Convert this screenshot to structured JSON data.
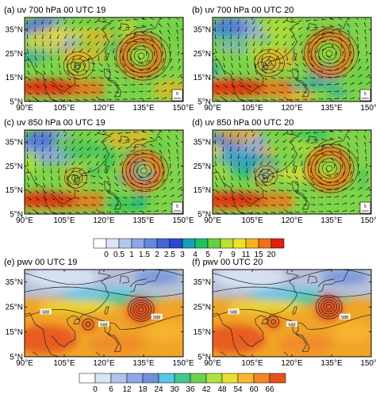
{
  "panels": [
    {
      "id": "a",
      "title": "(a) uv 700 hPa 00 UTC 19",
      "field": "wind"
    },
    {
      "id": "b",
      "title": "(b) uv 700 hPa 00 UTC 20",
      "field": "wind"
    },
    {
      "id": "c",
      "title": "(c) uv 850 hPa 00 UTC 19",
      "field": "wind"
    },
    {
      "id": "d",
      "title": "(d) uv 850 hPa 00 UTC 20",
      "field": "wind"
    },
    {
      "id": "e",
      "title": "(e) pwv  00 UTC 19",
      "field": "pwv"
    },
    {
      "id": "f",
      "title": "(f) pwv  00 UTC 20",
      "field": "pwv"
    }
  ],
  "axes": {
    "lon_ticks": [
      "90°E",
      "105°E",
      "120°E",
      "135°E",
      "150°E"
    ],
    "lat_ticks": [
      "5°N",
      "15°N",
      "25°N",
      "35°N"
    ],
    "lon_range": [
      90,
      150
    ],
    "lat_range": [
      5,
      40
    ]
  },
  "ref_vector_label": "5",
  "contour_label": "588",
  "wind_colorbar": {
    "labels": [
      "0",
      "0.5",
      "1",
      "1.5",
      "2",
      "2.5",
      "3",
      "4",
      "5",
      "7",
      "9",
      "11",
      "15",
      "20"
    ],
    "colors": [
      "#ffffff",
      "#dce6f5",
      "#b4c8ee",
      "#8ca6e8",
      "#6688e0",
      "#4466d8",
      "#2a48d0",
      "#18a0b8",
      "#20c060",
      "#66d040",
      "#b8e030",
      "#f0e028",
      "#f8b020",
      "#f07018",
      "#e02010"
    ]
  },
  "pwv_colorbar": {
    "labels": [
      "0",
      "6",
      "12",
      "18",
      "24",
      "30",
      "36",
      "42",
      "48",
      "54",
      "60",
      "66"
    ],
    "colors": [
      "#ffffff",
      "#d8e4f4",
      "#b0c4ec",
      "#90a8e4",
      "#7090dc",
      "#58c8e8",
      "#40c890",
      "#70d050",
      "#b0e040",
      "#e8e030",
      "#f8b830",
      "#f08828",
      "#e85020"
    ]
  },
  "colors": {
    "wind_base": "#7ed44a",
    "pwv_base": "#f0a428",
    "arrow": "#111111",
    "coast": "#222222"
  }
}
